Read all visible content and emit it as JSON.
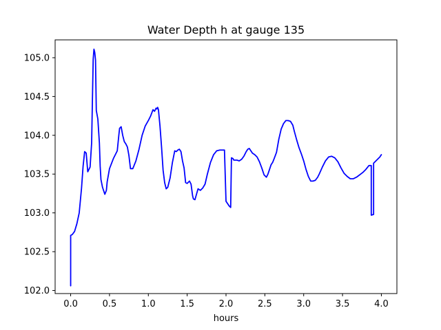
{
  "chart_data": {
    "type": "line",
    "title": "Water Depth h at gauge 135",
    "xlabel": "hours",
    "ylabel": "",
    "xlim": [
      -0.2,
      4.2
    ],
    "ylim": [
      101.96,
      105.23
    ],
    "xticks": [
      0.0,
      0.5,
      1.0,
      1.5,
      2.0,
      2.5,
      3.0,
      3.5,
      4.0
    ],
    "xtick_labels": [
      "0.0",
      "0.5",
      "1.0",
      "1.5",
      "2.0",
      "2.5",
      "3.0",
      "3.5",
      "4.0"
    ],
    "yticks": [
      102.0,
      102.5,
      103.0,
      103.5,
      104.0,
      104.5,
      105.0
    ],
    "ytick_labels": [
      "102.0",
      "102.5",
      "103.0",
      "103.5",
      "104.0",
      "104.5",
      "105.0"
    ],
    "grid": false,
    "legend": "none",
    "colors": {
      "line": "#0000ff",
      "axes": "#000000",
      "background": "#ffffff"
    },
    "series": [
      {
        "x": [
          0.0,
          0.0,
          0.02,
          0.05,
          0.08,
          0.11,
          0.14,
          0.16,
          0.18,
          0.2,
          0.22,
          0.25,
          0.27,
          0.28,
          0.29,
          0.3,
          0.31,
          0.32,
          0.33,
          0.35,
          0.37,
          0.38,
          0.39,
          0.41,
          0.44,
          0.46,
          0.47,
          0.5,
          0.55,
          0.6,
          0.62,
          0.63,
          0.64,
          0.65,
          0.67,
          0.69,
          0.71,
          0.73,
          0.75,
          0.77,
          0.8,
          0.84,
          0.88,
          0.92,
          0.96,
          1.0,
          1.03,
          1.06,
          1.08,
          1.1,
          1.11,
          1.12,
          1.13,
          1.15,
          1.17,
          1.19,
          1.21,
          1.23,
          1.25,
          1.28,
          1.31,
          1.34,
          1.36,
          1.38,
          1.4,
          1.42,
          1.44,
          1.46,
          1.48,
          1.5,
          1.53,
          1.55,
          1.57,
          1.58,
          1.6,
          1.62,
          1.64,
          1.67,
          1.7,
          1.73,
          1.76,
          1.8,
          1.84,
          1.88,
          1.92,
          1.95,
          1.98,
          2.0,
          2.0,
          2.02,
          2.04,
          2.06,
          2.07,
          2.07,
          2.09,
          2.1,
          2.12,
          2.14,
          2.17,
          2.2,
          2.23,
          2.26,
          2.28,
          2.3,
          2.32,
          2.34,
          2.37,
          2.4,
          2.43,
          2.46,
          2.49,
          2.52,
          2.54,
          2.56,
          2.58,
          2.6,
          2.62,
          2.65,
          2.68,
          2.71,
          2.74,
          2.77,
          2.8,
          2.83,
          2.86,
          2.88,
          2.91,
          2.94,
          2.97,
          3.0,
          3.03,
          3.06,
          3.09,
          3.12,
          3.15,
          3.18,
          3.2,
          3.24,
          3.28,
          3.32,
          3.36,
          3.4,
          3.44,
          3.48,
          3.52,
          3.56,
          3.6,
          3.64,
          3.68,
          3.72,
          3.76,
          3.8,
          3.84,
          3.87,
          3.87,
          3.9,
          3.9,
          3.92,
          3.95,
          3.98,
          4.0
        ],
        "y": [
          102.06,
          102.71,
          102.72,
          102.76,
          102.86,
          103.0,
          103.32,
          103.6,
          103.79,
          103.77,
          103.53,
          103.59,
          103.9,
          104.45,
          104.98,
          105.11,
          105.07,
          104.97,
          104.32,
          104.21,
          103.9,
          103.6,
          103.43,
          103.33,
          103.24,
          103.29,
          103.4,
          103.57,
          103.7,
          103.8,
          104.0,
          104.09,
          104.1,
          104.11,
          104.0,
          103.92,
          103.89,
          103.85,
          103.74,
          103.57,
          103.57,
          103.67,
          103.82,
          104.0,
          104.12,
          104.19,
          104.25,
          104.33,
          104.31,
          104.35,
          104.34,
          104.36,
          104.33,
          104.12,
          103.85,
          103.55,
          103.39,
          103.31,
          103.33,
          103.45,
          103.65,
          103.8,
          103.79,
          103.81,
          103.82,
          103.79,
          103.67,
          103.58,
          103.39,
          103.38,
          103.41,
          103.37,
          103.22,
          103.18,
          103.17,
          103.24,
          103.31,
          103.29,
          103.32,
          103.37,
          103.5,
          103.65,
          103.75,
          103.8,
          103.81,
          103.81,
          103.81,
          103.15,
          103.15,
          103.12,
          103.09,
          103.07,
          103.71,
          103.71,
          103.7,
          103.68,
          103.68,
          103.68,
          103.67,
          103.69,
          103.73,
          103.79,
          103.82,
          103.83,
          103.8,
          103.77,
          103.75,
          103.72,
          103.66,
          103.58,
          103.49,
          103.46,
          103.5,
          103.56,
          103.62,
          103.65,
          103.7,
          103.78,
          103.95,
          104.08,
          104.15,
          104.19,
          104.19,
          104.18,
          104.13,
          104.05,
          103.94,
          103.84,
          103.76,
          103.67,
          103.56,
          103.47,
          103.41,
          103.41,
          103.42,
          103.46,
          103.5,
          103.59,
          103.67,
          103.72,
          103.73,
          103.71,
          103.66,
          103.58,
          103.51,
          103.47,
          103.44,
          103.44,
          103.46,
          103.49,
          103.52,
          103.56,
          103.61,
          103.61,
          102.97,
          102.98,
          103.64,
          103.66,
          103.69,
          103.72,
          103.75
        ]
      }
    ]
  }
}
